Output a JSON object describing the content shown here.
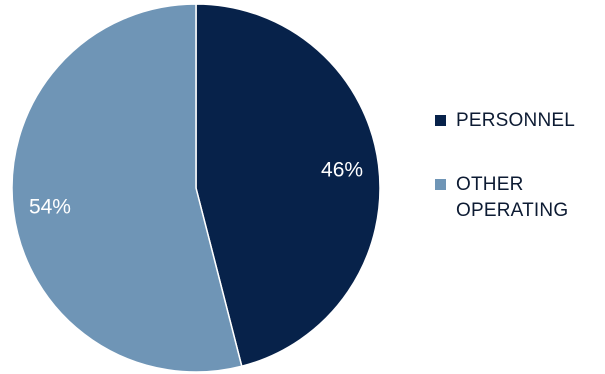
{
  "chart_data": {
    "type": "pie",
    "title": "",
    "slices": [
      {
        "label": "PERSONNEL",
        "value": 46,
        "display": "46%",
        "color": "#07224a"
      },
      {
        "label": "OTHER\nOPERATING",
        "value": 54,
        "display": "54%",
        "color": "#6f95b6"
      }
    ],
    "legend_position": "right"
  }
}
